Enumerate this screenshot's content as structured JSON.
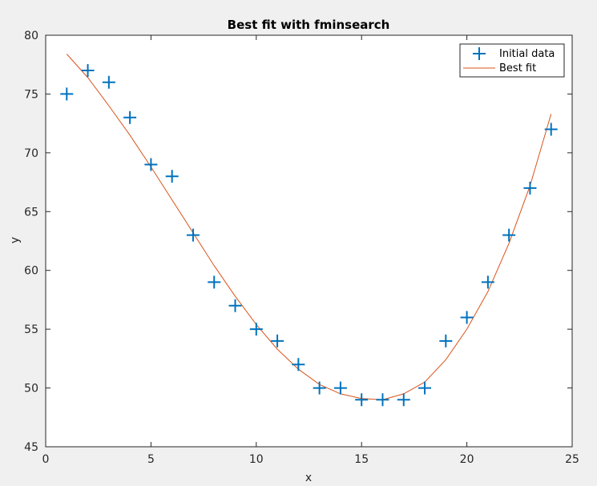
{
  "chart_data": {
    "type": "scatter",
    "title": "Best fit with fminsearch",
    "xlabel": "x",
    "ylabel": "y",
    "xlim": [
      0,
      25
    ],
    "ylim": [
      45,
      80
    ],
    "xticks": [
      0,
      5,
      10,
      15,
      20,
      25
    ],
    "yticks": [
      45,
      50,
      55,
      60,
      65,
      70,
      75,
      80
    ],
    "grid": false,
    "legend_position": "top-right",
    "series": [
      {
        "name": "Initial data",
        "kind": "markers",
        "marker": "plus",
        "color": "#0072bd",
        "x": [
          1,
          2,
          3,
          4,
          5,
          6,
          7,
          8,
          9,
          10,
          11,
          12,
          13,
          14,
          15,
          16,
          17,
          18,
          19,
          20,
          21,
          22,
          23,
          24
        ],
        "y": [
          75,
          77,
          76,
          73,
          69,
          68,
          63,
          59,
          57,
          55,
          54,
          52,
          50,
          50,
          49,
          49,
          49,
          50,
          54,
          56,
          59,
          63,
          67,
          72
        ]
      },
      {
        "name": "Best fit",
        "kind": "line",
        "color": "#d95319",
        "x": [
          1,
          2,
          3,
          4,
          5,
          6,
          7,
          8,
          9,
          10,
          11,
          12,
          13,
          14,
          15,
          16,
          17,
          18,
          19,
          20,
          21,
          22,
          23,
          24
        ],
        "y": [
          78.4,
          76.4,
          74.0,
          71.5,
          68.8,
          66.0,
          63.2,
          60.4,
          57.8,
          55.4,
          53.3,
          51.6,
          50.3,
          49.5,
          49.1,
          49.0,
          49.5,
          50.5,
          52.4,
          55.0,
          58.2,
          62.3,
          67.2,
          73.3
        ]
      }
    ]
  }
}
